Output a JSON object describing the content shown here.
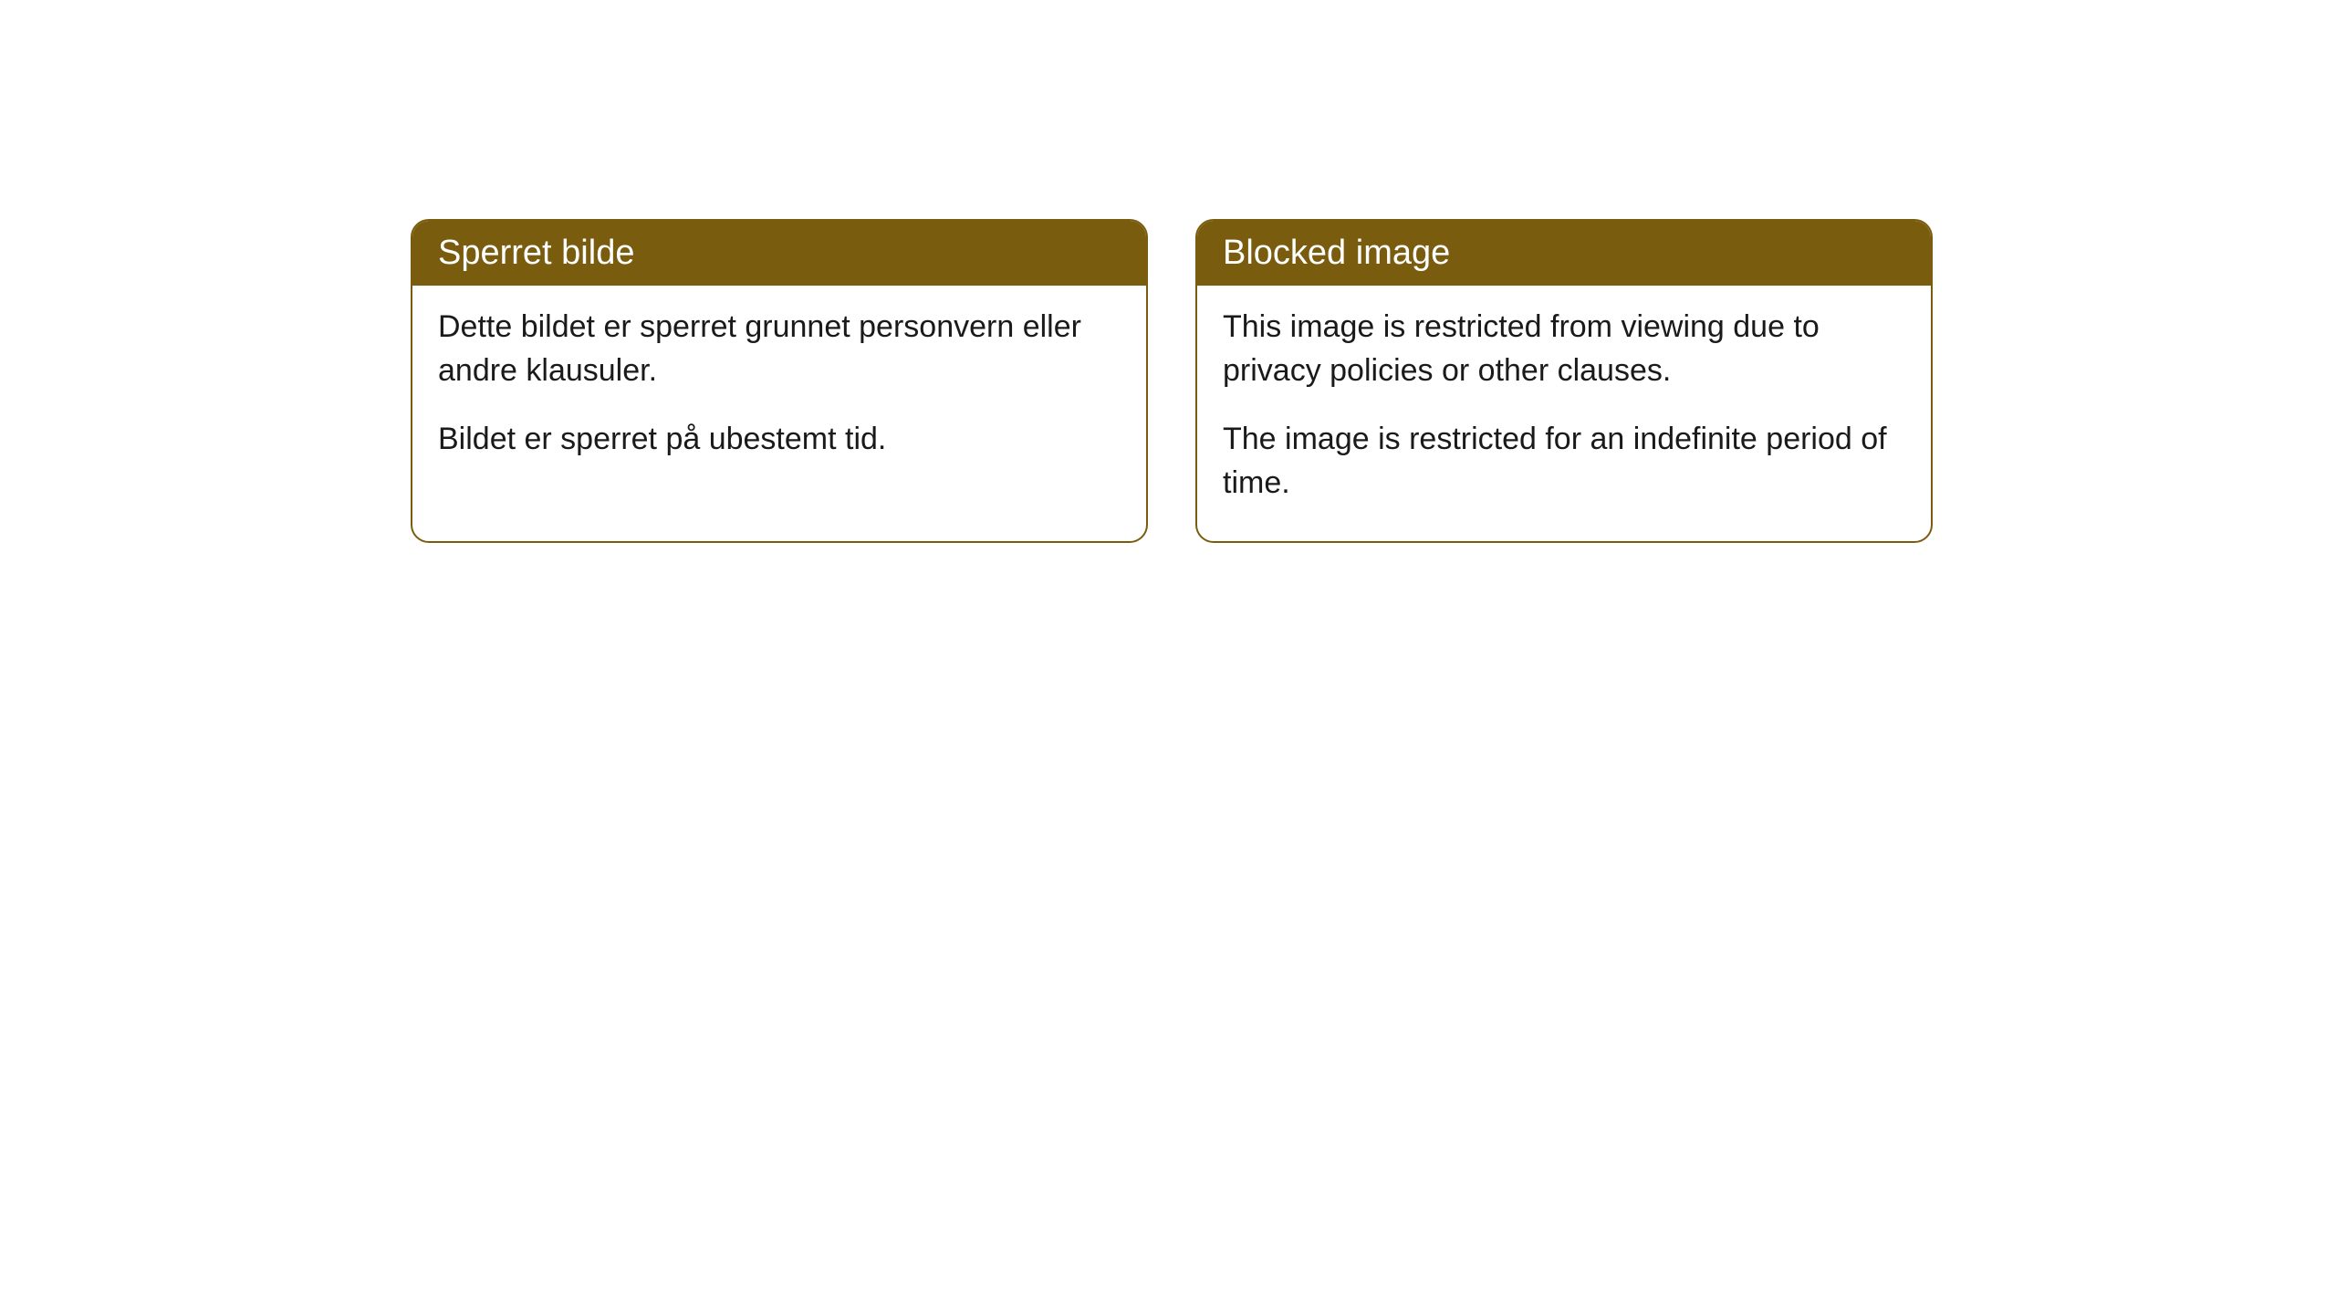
{
  "notices": {
    "left": {
      "title": "Sperret bilde",
      "paragraph1": "Dette bildet er sperret grunnet personvern eller andre klausuler.",
      "paragraph2": "Bildet er sperret på ubestemt tid."
    },
    "right": {
      "title": "Blocked image",
      "paragraph1": "This image is restricted from viewing due to privacy policies or other clauses.",
      "paragraph2": "The image is restricted for an indefinite period of time."
    }
  },
  "colors": {
    "header_bg": "#7a5c0f",
    "header_text": "#ffffff",
    "body_text": "#1a1a1a",
    "border": "#7a5c0f",
    "page_bg": "#ffffff"
  }
}
